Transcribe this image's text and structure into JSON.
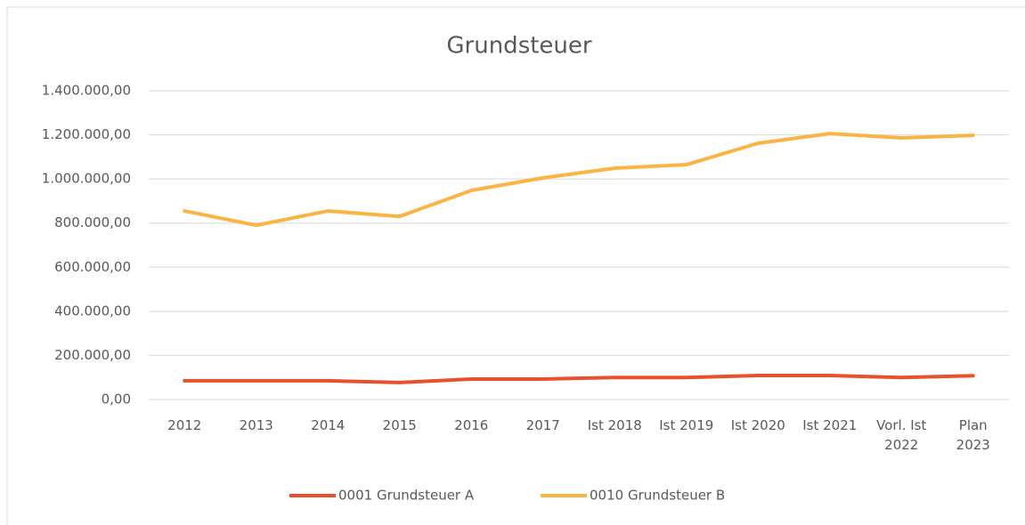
{
  "chart_data": {
    "type": "line",
    "title": "Grundsteuer",
    "categories": [
      "2012",
      "2013",
      "2014",
      "2015",
      "2016",
      "2017",
      "Ist 2018",
      "Ist 2019",
      "Ist 2020",
      "Ist 2021",
      "Vorl. Ist 2022",
      "Plan 2023"
    ],
    "series": [
      {
        "name": "0001 Grundsteuer A",
        "color": "#e8512a",
        "values": [
          85000,
          85000,
          85000,
          77000,
          93000,
          93000,
          100000,
          100000,
          109000,
          109000,
          100000,
          108000
        ]
      },
      {
        "name": "0010 Grundsteuer B",
        "color": "#fbb443",
        "values": [
          855000,
          790000,
          855000,
          830000,
          948000,
          1005000,
          1049000,
          1065000,
          1162000,
          1206000,
          1186000,
          1198000
        ]
      }
    ],
    "ylim": [
      0,
      1400000
    ],
    "yticks": [
      {
        "value": 0,
        "label": "0,00"
      },
      {
        "value": 200000,
        "label": "200.000,00"
      },
      {
        "value": 400000,
        "label": "400.000,00"
      },
      {
        "value": 600000,
        "label": "600.000,00"
      },
      {
        "value": 800000,
        "label": "800.000,00"
      },
      {
        "value": 1000000,
        "label": "1.000.000,00"
      },
      {
        "value": 1200000,
        "label": "1.200.000,00"
      },
      {
        "value": 1400000,
        "label": "1.400.000,00"
      }
    ],
    "grid": true,
    "legend": "bottom"
  }
}
